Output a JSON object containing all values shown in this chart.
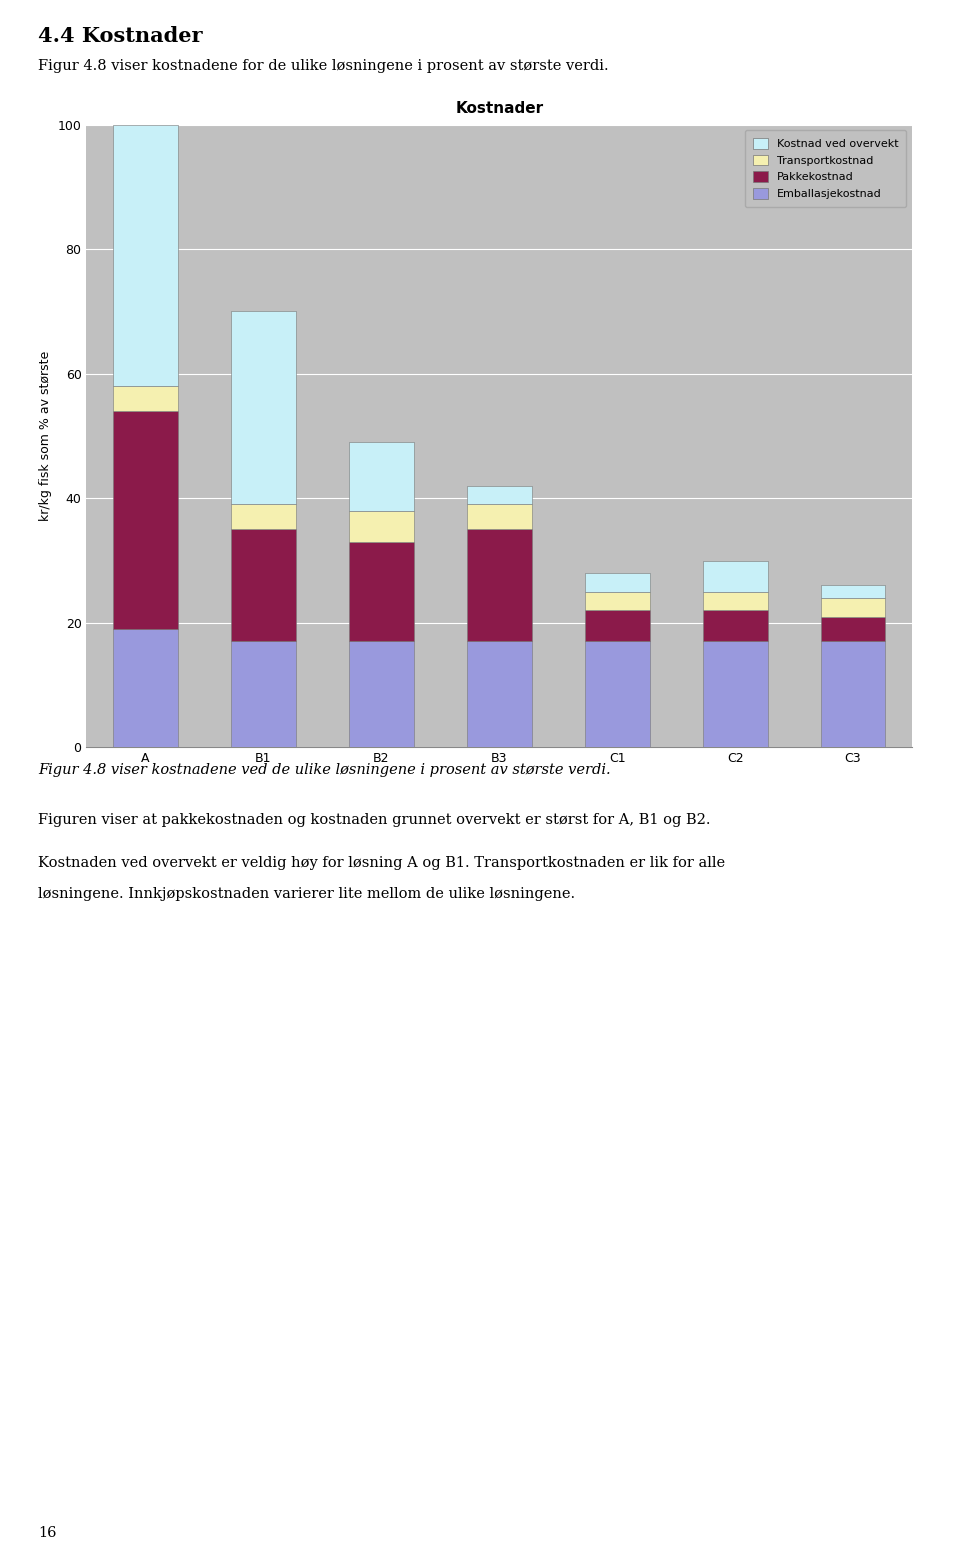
{
  "title": "Kostnader",
  "ylabel": "kr/kg fisk som % av største",
  "categories": [
    "A",
    "B1",
    "B2",
    "B3",
    "C1",
    "C2",
    "C3"
  ],
  "series": {
    "Emballasjekostnad": [
      19,
      17,
      17,
      17,
      17,
      17,
      17
    ],
    "Pakkekostnad": [
      35,
      18,
      16,
      18,
      5,
      5,
      4
    ],
    "Transportkostnad": [
      4,
      4,
      5,
      4,
      3,
      3,
      3
    ],
    "Kostnad ved overvekt": [
      42,
      31,
      11,
      3,
      3,
      5,
      2
    ]
  },
  "colors": {
    "Emballasjekostnad": "#9999dd",
    "Pakkekostnad": "#8b1a4a",
    "Transportkostnad": "#f5f0b0",
    "Kostnad ved overvekt": "#c8f0f8"
  },
  "ylim": [
    0,
    100
  ],
  "yticks": [
    0,
    20,
    40,
    60,
    80,
    100
  ],
  "plot_bg": "#c0c0c0",
  "fig_bg": "#ffffff",
  "bar_width": 0.55,
  "legend_order": [
    "Kostnad ved overvekt",
    "Transportkostnad",
    "Pakkekostnad",
    "Emballasjekostnad"
  ],
  "title_fontsize": 11,
  "label_fontsize": 9,
  "tick_fontsize": 9,
  "legend_fontsize": 8,
  "header_title": "4.4 Kostnader",
  "header_subtitle": "Figur 4.8 viser kostnadene for de ulike løsningene i prosent av største verdi.",
  "figure_caption": "Figur 4.8 viser kostnadene ved de ulike løsningene i prosent av største verdi.",
  "body_text1": "Figuren viser at pakkekostnaden og kostnaden grunnet overvekt er størst for A, B1 og B2.",
  "body_text2a": "Kostnaden ved overvekt er veldig høy for løsning A og B1. Transportkostnaden er lik for alle",
  "body_text2b": "løsningene. Innkjøpskostnaden varierer lite mellom de ulike løsningene.",
  "footer_text": "16"
}
